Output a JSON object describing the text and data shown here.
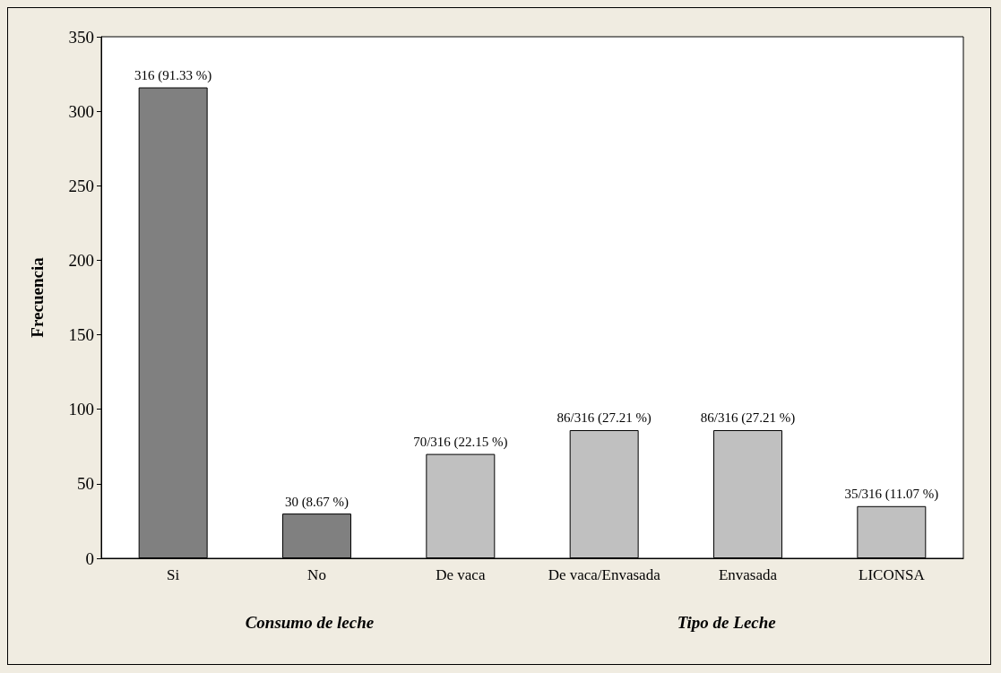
{
  "chart_data": {
    "type": "bar",
    "ylabel": "Frecuencia",
    "categories": [
      "Si",
      "No",
      "De vaca",
      "De vaca/Envasada",
      "Envasada",
      "LICONSA"
    ],
    "values": [
      316,
      30,
      70,
      86,
      86,
      35
    ],
    "colors": [
      "#808080",
      "#808080",
      "#c0c0c0",
      "#c0c0c0",
      "#c0c0c0",
      "#c0c0c0"
    ],
    "value_labels": [
      "316 (91.33 %)",
      "30 (8.67 %)",
      "70/316 (22.15 %)",
      "86/316 (27.21 %)",
      "86/316 (27.21 %)",
      "35/316 (11.07 %)"
    ],
    "annotations": [
      "Consumo de leche",
      "Tipo de Leche"
    ],
    "ylim": [
      0,
      350
    ],
    "yticks": [
      0,
      50,
      100,
      150,
      200,
      250,
      300,
      350
    ]
  }
}
